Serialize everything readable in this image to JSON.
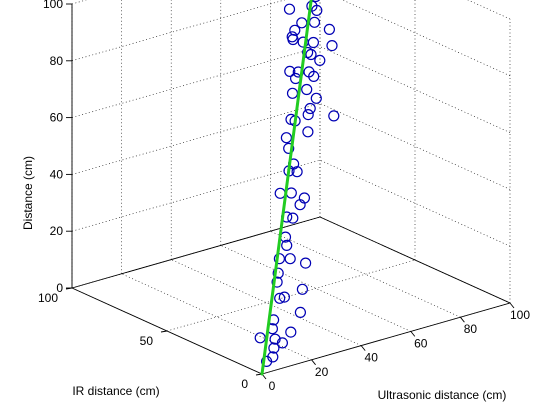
{
  "chart_data": {
    "type": "scatter3d",
    "title": "",
    "xlabel": "Ultrasonic distance (cm)",
    "ylabel": "IR distance (cm)",
    "zlabel": "Distance (cm)",
    "xlim": [
      0,
      100
    ],
    "ylim": [
      0,
      100
    ],
    "zlim": [
      0,
      100
    ],
    "xticks": [
      "0",
      "20",
      "40",
      "60",
      "80",
      "100"
    ],
    "yticks": [
      "0",
      "50",
      "100"
    ],
    "zticks": [
      "0",
      "20",
      "40",
      "60",
      "80",
      "100"
    ],
    "grid": true,
    "colors": {
      "markers": "#0000b4",
      "fit_line": "#22cc22",
      "axes": "#000000",
      "grid": "#000000"
    },
    "fit_line": {
      "from": [
        0,
        0,
        0
      ],
      "to": [
        100,
        100,
        100
      ]
    },
    "points": [
      [
        100,
        100,
        96
      ],
      [
        100,
        92,
        90
      ],
      [
        98,
        96,
        88
      ],
      [
        94,
        96,
        92
      ],
      [
        96,
        92,
        86
      ],
      [
        92,
        90,
        84
      ],
      [
        88,
        86,
        80
      ],
      [
        90,
        82,
        74
      ],
      [
        86,
        86,
        82
      ],
      [
        84,
        82,
        78
      ],
      [
        88,
        78,
        70
      ],
      [
        82,
        80,
        72
      ],
      [
        78,
        76,
        70
      ],
      [
        80,
        74,
        68
      ],
      [
        76,
        72,
        64
      ],
      [
        74,
        68,
        58
      ],
      [
        70,
        66,
        56
      ],
      [
        78,
        64,
        52
      ],
      [
        66,
        62,
        50
      ],
      [
        60,
        56,
        30
      ],
      [
        52,
        52,
        90
      ],
      [
        50,
        48,
        94
      ],
      [
        54,
        56,
        98
      ],
      [
        62,
        60,
        90
      ],
      [
        58,
        54,
        86
      ],
      [
        56,
        54,
        76
      ],
      [
        60,
        62,
        84
      ],
      [
        58,
        58,
        72
      ],
      [
        48,
        48,
        80
      ],
      [
        46,
        44,
        74
      ],
      [
        44,
        40,
        66
      ],
      [
        42,
        42,
        60
      ],
      [
        50,
        50,
        62
      ],
      [
        46,
        46,
        54
      ],
      [
        40,
        38,
        50
      ],
      [
        38,
        40,
        42
      ],
      [
        36,
        34,
        36
      ],
      [
        34,
        32,
        30
      ],
      [
        44,
        42,
        40
      ],
      [
        48,
        46,
        48
      ],
      [
        30,
        30,
        24
      ],
      [
        28,
        28,
        20
      ],
      [
        26,
        26,
        18
      ],
      [
        24,
        22,
        14
      ],
      [
        20,
        20,
        8
      ],
      [
        18,
        18,
        6
      ],
      [
        16,
        14,
        4
      ],
      [
        14,
        12,
        2
      ],
      [
        12,
        10,
        0
      ],
      [
        22,
        18,
        0
      ],
      [
        30,
        24,
        0
      ],
      [
        40,
        32,
        2
      ],
      [
        50,
        44,
        4
      ],
      [
        62,
        58,
        6
      ],
      [
        32,
        30,
        10
      ],
      [
        42,
        40,
        18
      ],
      [
        36,
        34,
        26
      ],
      [
        40,
        36,
        34
      ],
      [
        46,
        40,
        36
      ],
      [
        54,
        52,
        42
      ],
      [
        60,
        54,
        60
      ],
      [
        64,
        60,
        66
      ],
      [
        68,
        64,
        70
      ],
      [
        72,
        70,
        74
      ],
      [
        86,
        84,
        86
      ],
      [
        92,
        94,
        94
      ],
      [
        96,
        98,
        100
      ],
      [
        10,
        14,
        6
      ],
      [
        8,
        8,
        0
      ]
    ]
  }
}
